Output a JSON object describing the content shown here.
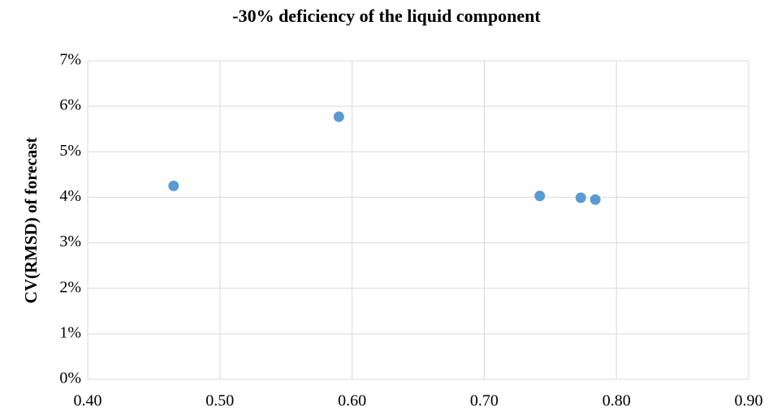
{
  "chart_data": {
    "type": "scatter",
    "title": "-30% deficiency of the liquid component",
    "y_label": "CV(RMSD) of forecast",
    "series": [
      {
        "color": "#5b9bd5",
        "x": [
          0.465,
          0.59,
          0.742,
          0.773,
          0.784
        ],
        "values": [
          4.25,
          5.77,
          4.03,
          3.99,
          3.95
        ]
      }
    ],
    "xlim": [
      0.4,
      0.9
    ],
    "xticks": [
      {
        "value": 0.4,
        "label": "0.40"
      },
      {
        "value": 0.5,
        "label": "0.50"
      },
      {
        "value": 0.6,
        "label": "0.60"
      },
      {
        "value": 0.7,
        "label": "0.70"
      },
      {
        "value": 0.8,
        "label": "0.80"
      },
      {
        "value": 0.9,
        "label": "0.90"
      }
    ],
    "ylim": [
      0,
      7
    ],
    "yticks": [
      {
        "value": 0,
        "label": "0%"
      },
      {
        "value": 1,
        "label": "1%"
      },
      {
        "value": 2,
        "label": "2%"
      },
      {
        "value": 3,
        "label": "3%"
      },
      {
        "value": 4,
        "label": "4%"
      },
      {
        "value": 5,
        "label": "5%"
      },
      {
        "value": 6,
        "label": "6%"
      },
      {
        "value": 7,
        "label": "7%"
      }
    ],
    "grid": true
  }
}
